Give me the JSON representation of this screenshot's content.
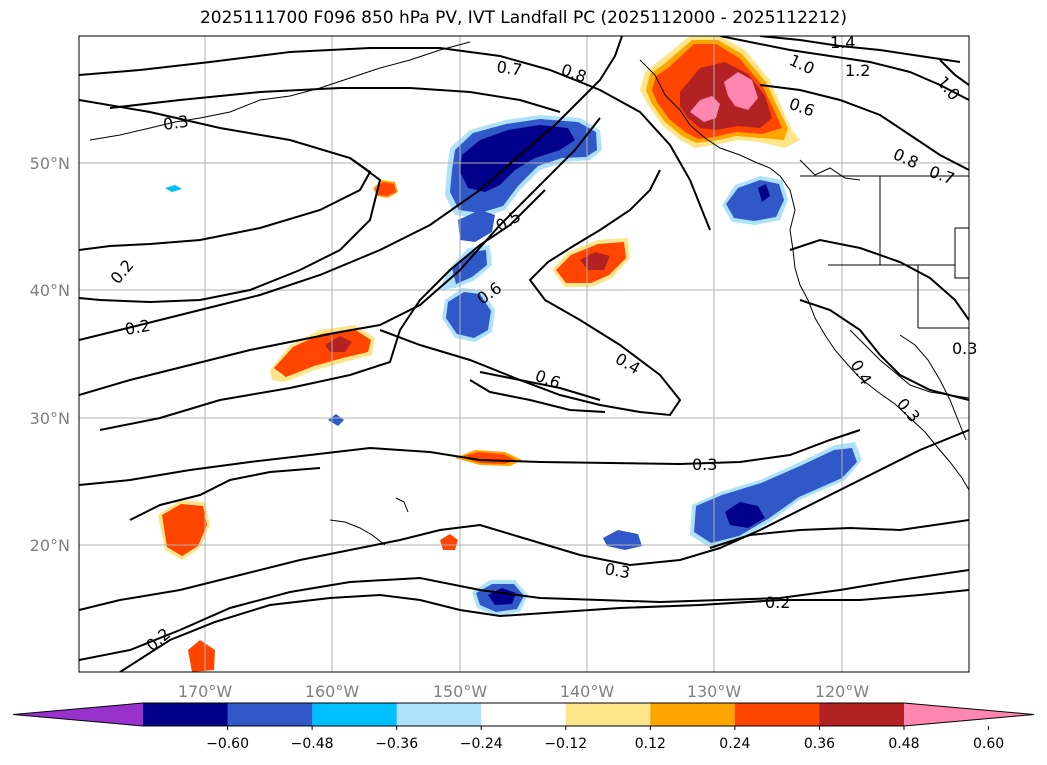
{
  "title": "2025111700 F096 850 hPa PV, IVT Landfall PC (2025112000 - 2025112212)",
  "axes": {
    "lon_ticks": [
      "170°W",
      "160°W",
      "150°W",
      "140°W",
      "130°W",
      "120°W"
    ],
    "lat_ticks": [
      "50°N",
      "40°N",
      "30°N",
      "20°N"
    ]
  },
  "contour_labels": [
    "1.4",
    "1.0",
    "1.2",
    "1.0",
    "0.7",
    "0.8",
    "0.3",
    "0.6",
    "0.8",
    "0.7",
    "0.5",
    "0.6",
    "0.2",
    "0.2",
    "0.4",
    "0.6",
    "0.4",
    "0.3",
    "0.3",
    "0.3",
    "0.2",
    "0.2",
    "0.3"
  ],
  "colorbar": {
    "ticks": [
      "−0.60",
      "−0.48",
      "−0.36",
      "−0.24",
      "−0.12",
      "0.12",
      "0.24",
      "0.36",
      "0.48",
      "0.60"
    ],
    "colors": [
      "#9932cc",
      "#00008b",
      "#3158c8",
      "#00bfff",
      "#aee2fa",
      "#ffffff",
      "#fde68a",
      "#ffa500",
      "#ff4500",
      "#b22222",
      "#ff86b0"
    ]
  },
  "colors": {
    "contour": "#000000",
    "grid": "#b0b0b0",
    "coast": "#000000"
  }
}
